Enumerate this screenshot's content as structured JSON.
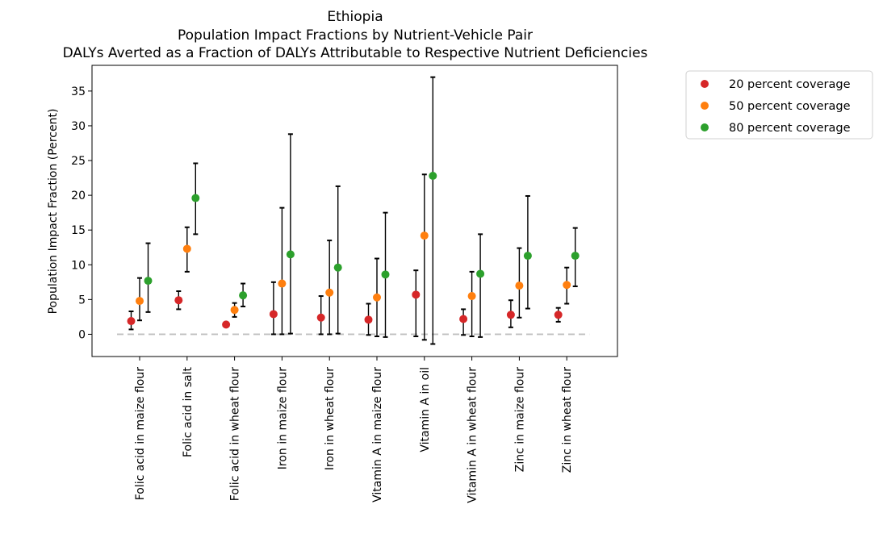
{
  "chart_data": {
    "type": "scatter",
    "title_lines": [
      "Ethiopia",
      "Population Impact Fractions by Nutrient-Vehicle Pair",
      "DALYs Averted as a Fraction of DALYs Attributable to Respective Nutrient Deficiencies"
    ],
    "ylabel": "Population Impact Fraction (Percent)",
    "xlabel": "",
    "ylim": [
      -3.2,
      38.7
    ],
    "yticks": [
      0,
      5,
      10,
      15,
      20,
      25,
      30,
      35
    ],
    "reference_line": {
      "y": 0,
      "style": "dashed",
      "color": "#c0c0c0"
    },
    "categories": [
      "Folic acid in maize flour",
      "Folic acid in salt",
      "Folic acid in wheat flour",
      "Iron in maize flour",
      "Iron in wheat flour",
      "Vitamin A in maize flour",
      "Vitamin A in oil",
      "Vitamin A in wheat flour",
      "Zinc in maize flour",
      "Zinc in wheat flour"
    ],
    "legend_position": "outside upper right",
    "series": [
      {
        "name": "20 percent coverage",
        "color": "#d62728",
        "values": [
          1.9,
          4.9,
          1.4,
          2.9,
          2.4,
          2.1,
          5.7,
          2.2,
          2.8,
          2.8
        ],
        "lower": [
          0.7,
          3.6,
          1.2,
          0.0,
          0.0,
          -0.1,
          -0.3,
          -0.1,
          1.0,
          1.8
        ],
        "upper": [
          3.3,
          6.2,
          1.7,
          7.5,
          5.5,
          4.4,
          9.2,
          3.6,
          4.9,
          3.8
        ]
      },
      {
        "name": "50 percent coverage",
        "color": "#ff7f0e",
        "values": [
          4.8,
          12.3,
          3.5,
          7.3,
          6.0,
          5.3,
          14.2,
          5.5,
          7.0,
          7.1
        ],
        "lower": [
          2.0,
          9.0,
          2.5,
          0.0,
          0.0,
          -0.3,
          -0.8,
          -0.3,
          2.4,
          4.4
        ],
        "upper": [
          8.1,
          15.4,
          4.5,
          18.2,
          13.5,
          10.9,
          23.0,
          9.0,
          12.4,
          9.6
        ]
      },
      {
        "name": "80 percent coverage",
        "color": "#2ca02c",
        "values": [
          7.7,
          19.6,
          5.6,
          11.5,
          9.6,
          8.6,
          22.8,
          8.7,
          11.3,
          11.3
        ],
        "lower": [
          3.2,
          14.4,
          4.0,
          0.1,
          0.1,
          -0.4,
          -1.4,
          -0.4,
          3.7,
          6.9
        ],
        "upper": [
          13.1,
          24.6,
          7.3,
          28.8,
          21.3,
          17.5,
          37.0,
          14.4,
          19.9,
          15.3
        ]
      }
    ],
    "grid": false
  }
}
